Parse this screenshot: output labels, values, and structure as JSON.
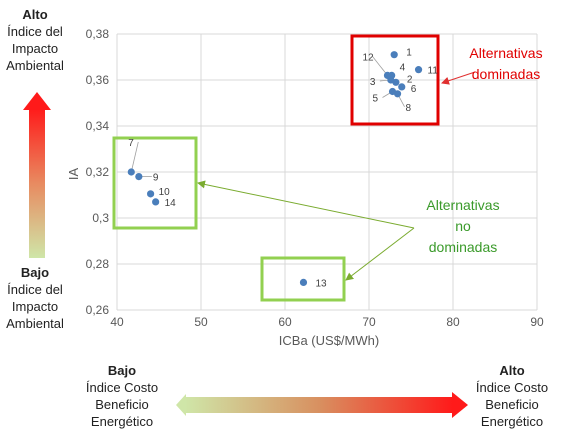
{
  "left_scale": {
    "top_label": "Alto",
    "top_desc": [
      "Índice del",
      "Impacto",
      "Ambiental"
    ],
    "bottom_label": "Bajo",
    "bottom_desc": [
      "Índice del",
      "Impacto",
      "Ambiental"
    ]
  },
  "bottom_scale": {
    "left_label": "Bajo",
    "left_desc": [
      "Índice Costo",
      "Beneficio",
      "Energético"
    ],
    "right_label": "Alto",
    "right_desc": [
      "Índice Costo",
      "Beneficio",
      "Energético"
    ]
  },
  "annotations": {
    "dominated": [
      "Alternativas",
      "dominadas"
    ],
    "non_dominated": [
      "Alternativas",
      "no",
      "dominadas"
    ]
  },
  "colors": {
    "point": "#4a7ebb",
    "dominated_box": "#e00000",
    "non_dominated_box": "#92d050",
    "arrow_green": "#7aab2f",
    "arrow_red": "#e03030",
    "grid": "#d9d9d9"
  },
  "chart_data": {
    "type": "scatter",
    "xlabel": "ICBa (US$/MWh)",
    "ylabel": "IA",
    "xlim": [
      40,
      90
    ],
    "ylim": [
      0.26,
      0.38
    ],
    "xticks": [
      "40",
      "50",
      "60",
      "70",
      "80",
      "90"
    ],
    "yticks": [
      "0,26",
      "0,28",
      "0,3",
      "0,32",
      "0,34",
      "0,36",
      "0,38"
    ],
    "grid": true,
    "points": [
      {
        "label": "1",
        "x": 73,
        "y": 0.371
      },
      {
        "label": "2",
        "x": 73.2,
        "y": 0.359
      },
      {
        "label": "3",
        "x": 72.6,
        "y": 0.36
      },
      {
        "label": "4",
        "x": 72.7,
        "y": 0.362
      },
      {
        "label": "5",
        "x": 72.8,
        "y": 0.355
      },
      {
        "label": "6",
        "x": 73.9,
        "y": 0.357
      },
      {
        "label": "7",
        "x": 41.7,
        "y": 0.32
      },
      {
        "label": "8",
        "x": 73.4,
        "y": 0.354
      },
      {
        "label": "9",
        "x": 42.6,
        "y": 0.318
      },
      {
        "label": "10",
        "x": 44,
        "y": 0.3105
      },
      {
        "label": "11",
        "x": 75.9,
        "y": 0.3645
      },
      {
        "label": "12",
        "x": 72.2,
        "y": 0.362
      },
      {
        "label": "13",
        "x": 62.2,
        "y": 0.272
      },
      {
        "label": "14",
        "x": 44.6,
        "y": 0.307
      }
    ]
  }
}
